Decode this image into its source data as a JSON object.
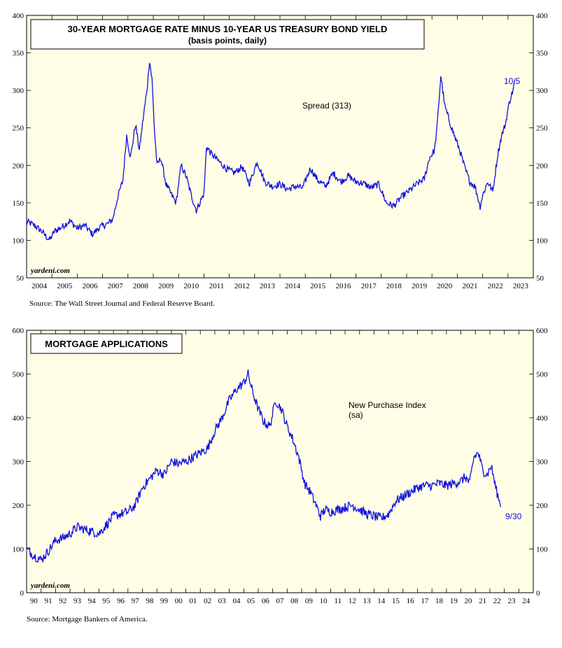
{
  "colors": {
    "panel_bg": "#fffde6",
    "series": "#1010e0",
    "axis": "#000000"
  },
  "watermark": "yardeni.com",
  "chart_data": [
    {
      "type": "line",
      "title": "30-YEAR MORTGAGE RATE MINUS 10-YEAR US TREASURY BOND YIELD",
      "subtitle": "(basis points, daily)",
      "series_label": "Spread (313)",
      "end_label": "10/5",
      "source": "Source: The Wall Street Journal and Federal Reserve Board.",
      "ylim": [
        50,
        400
      ],
      "yticks": [
        50,
        100,
        150,
        200,
        250,
        300,
        350,
        400
      ],
      "xlim": [
        2004,
        2024
      ],
      "xtick_labels": [
        "2004",
        "2005",
        "2006",
        "2007",
        "2008",
        "2009",
        "2010",
        "2011",
        "2012",
        "2013",
        "2014",
        "2015",
        "2016",
        "2017",
        "2018",
        "2019",
        "2020",
        "2021",
        "2022",
        "2023"
      ],
      "series": [
        {
          "name": "Spread",
          "x": [
            2004.0,
            2004.3,
            2004.6,
            2004.9,
            2005.1,
            2005.4,
            2005.7,
            2006.0,
            2006.3,
            2006.6,
            2006.9,
            2007.2,
            2007.4,
            2007.6,
            2007.8,
            2007.95,
            2008.1,
            2008.3,
            2008.45,
            2008.6,
            2008.75,
            2008.85,
            2008.95,
            2009.05,
            2009.15,
            2009.3,
            2009.5,
            2009.7,
            2009.9,
            2010.1,
            2010.3,
            2010.5,
            2010.7,
            2010.9,
            2011.0,
            2011.1,
            2011.3,
            2011.6,
            2011.9,
            2012.2,
            2012.5,
            2012.8,
            2013.1,
            2013.4,
            2013.7,
            2014.0,
            2014.3,
            2014.6,
            2014.9,
            2015.2,
            2015.5,
            2015.8,
            2016.1,
            2016.4,
            2016.7,
            2017.0,
            2017.3,
            2017.6,
            2017.9,
            2018.2,
            2018.5,
            2018.8,
            2019.1,
            2019.4,
            2019.7,
            2019.9,
            2020.1,
            2020.2,
            2020.35,
            2020.5,
            2020.7,
            2020.9,
            2021.1,
            2021.3,
            2021.5,
            2021.7,
            2021.9,
            2022.0,
            2022.2,
            2022.4,
            2022.6,
            2022.75
          ],
          "values": [
            125,
            120,
            112,
            100,
            112,
            118,
            126,
            116,
            120,
            108,
            118,
            122,
            128,
            158,
            180,
            240,
            210,
            255,
            220,
            262,
            300,
            340,
            315,
            245,
            200,
            210,
            175,
            162,
            150,
            200,
            185,
            160,
            140,
            155,
            162,
            225,
            215,
            205,
            195,
            190,
            198,
            176,
            205,
            178,
            172,
            175,
            168,
            172,
            170,
            196,
            180,
            172,
            190,
            178,
            186,
            178,
            176,
            170,
            175,
            150,
            146,
            158,
            166,
            175,
            182,
            210,
            220,
            250,
            320,
            280,
            258,
            238,
            220,
            196,
            178,
            172,
            145,
            160,
            178,
            165,
            215,
            240
          ]
        }
      ],
      "series_tail": {
        "x": [
          2022.9,
          2023.0,
          2023.1,
          2023.2,
          2023.26
        ],
        "values": [
          255,
          275,
          290,
          300,
          313
        ]
      }
    },
    {
      "type": "line",
      "title": "MORTGAGE APPLICATIONS",
      "series_label": "New Purchase Index",
      "series_label_2": "(sa)",
      "end_label": "9/30",
      "source": "Source: Mortgage Bankers of America.",
      "ylim": [
        0,
        600
      ],
      "yticks": [
        0,
        100,
        200,
        300,
        400,
        500,
        600
      ],
      "xlim": [
        1990,
        2025
      ],
      "xtick_labels": [
        "90",
        "91",
        "92",
        "93",
        "94",
        "95",
        "96",
        "97",
        "98",
        "99",
        "00",
        "01",
        "02",
        "03",
        "04",
        "05",
        "06",
        "07",
        "08",
        "09",
        "10",
        "11",
        "12",
        "13",
        "14",
        "15",
        "16",
        "17",
        "18",
        "19",
        "20",
        "21",
        "22",
        "23",
        "24"
      ],
      "series": [
        {
          "name": "New Purchase Index",
          "x": [
            1990.0,
            1990.5,
            1991.0,
            1991.5,
            1992.0,
            1992.5,
            1993.0,
            1993.5,
            1994.0,
            1994.5,
            1995.0,
            1995.5,
            1996.0,
            1996.5,
            1997.0,
            1997.5,
            1998.0,
            1998.5,
            1999.0,
            1999.5,
            2000.0,
            2000.5,
            2001.0,
            2001.5,
            2002.0,
            2002.5,
            2003.0,
            2003.5,
            2004.0,
            2004.5,
            2005.0,
            2005.3,
            2005.6,
            2006.0,
            2006.4,
            2006.8,
            2007.2,
            2007.6,
            2008.0,
            2008.4,
            2008.8,
            2009.2,
            2009.6,
            2010.0,
            2010.3,
            2010.6,
            2011.0,
            2011.5,
            2012.0,
            2012.5,
            2013.0,
            2013.5,
            2014.0,
            2014.5,
            2015.0,
            2015.5,
            2016.0,
            2016.5,
            2017.0,
            2017.5,
            2018.0,
            2018.5,
            2019.0,
            2019.5,
            2020.0,
            2020.3,
            2020.6,
            2020.9,
            2021.2,
            2021.5,
            2021.8,
            2022.1,
            2022.4,
            2022.6,
            2022.75
          ],
          "values": [
            100,
            85,
            75,
            95,
            120,
            125,
            135,
            150,
            145,
            140,
            135,
            155,
            175,
            180,
            185,
            200,
            240,
            260,
            280,
            270,
            300,
            295,
            300,
            310,
            320,
            330,
            370,
            400,
            440,
            465,
            480,
            500,
            460,
            420,
            390,
            380,
            440,
            420,
            380,
            350,
            310,
            250,
            230,
            200,
            175,
            190,
            185,
            190,
            195,
            200,
            190,
            180,
            175,
            170,
            180,
            210,
            220,
            230,
            240,
            245,
            245,
            250,
            245,
            250,
            255,
            265,
            250,
            310,
            320,
            280,
            270,
            290,
            240,
            215,
            196
          ]
        }
      ]
    }
  ]
}
